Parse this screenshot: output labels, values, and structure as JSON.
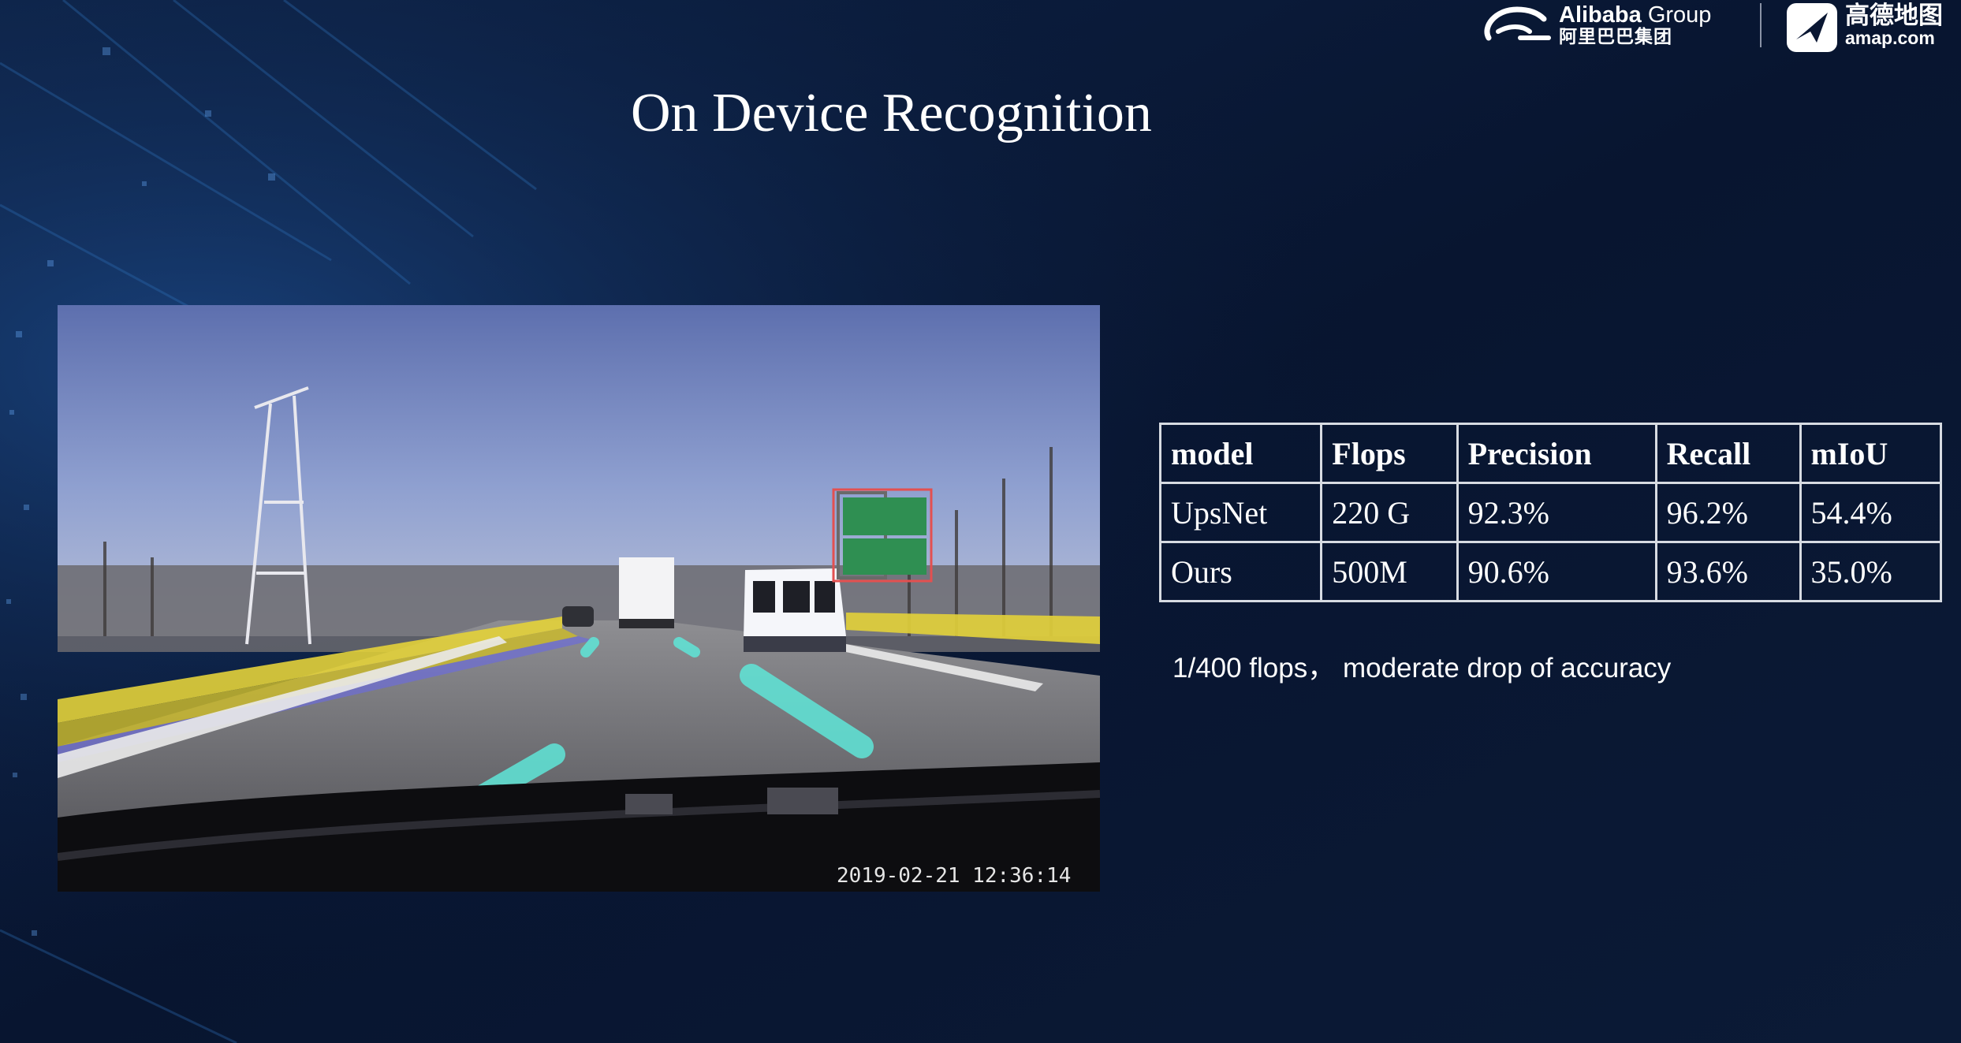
{
  "header": {
    "alibaba_name": "Alibaba",
    "alibaba_suffix": "Group",
    "alibaba_cn": "阿里巴巴集团",
    "amap_cn": "高德地图",
    "amap_url": "amap.com",
    "logo_icons": [
      "alibaba-logo-icon",
      "amap-logo-icon"
    ]
  },
  "slide": {
    "title": "On Device Recognition",
    "note": "1/400 flops， moderate drop of accuracy"
  },
  "photo": {
    "timestamp": "2019-02-21  12:36:14",
    "colors": {
      "guardrail_overlay": "#e3d23a",
      "lane_overlay": "#5fe6d8",
      "sign_box": "#e35050"
    }
  },
  "table": {
    "headers": [
      "model",
      "Flops",
      "Precision",
      "Recall",
      "mIoU"
    ],
    "rows": [
      [
        "UpsNet",
        "220 G",
        "92.3%",
        "96.2%",
        "54.4%"
      ],
      [
        "Ours",
        "500M",
        "90.6%",
        "93.6%",
        "35.0%"
      ]
    ]
  }
}
